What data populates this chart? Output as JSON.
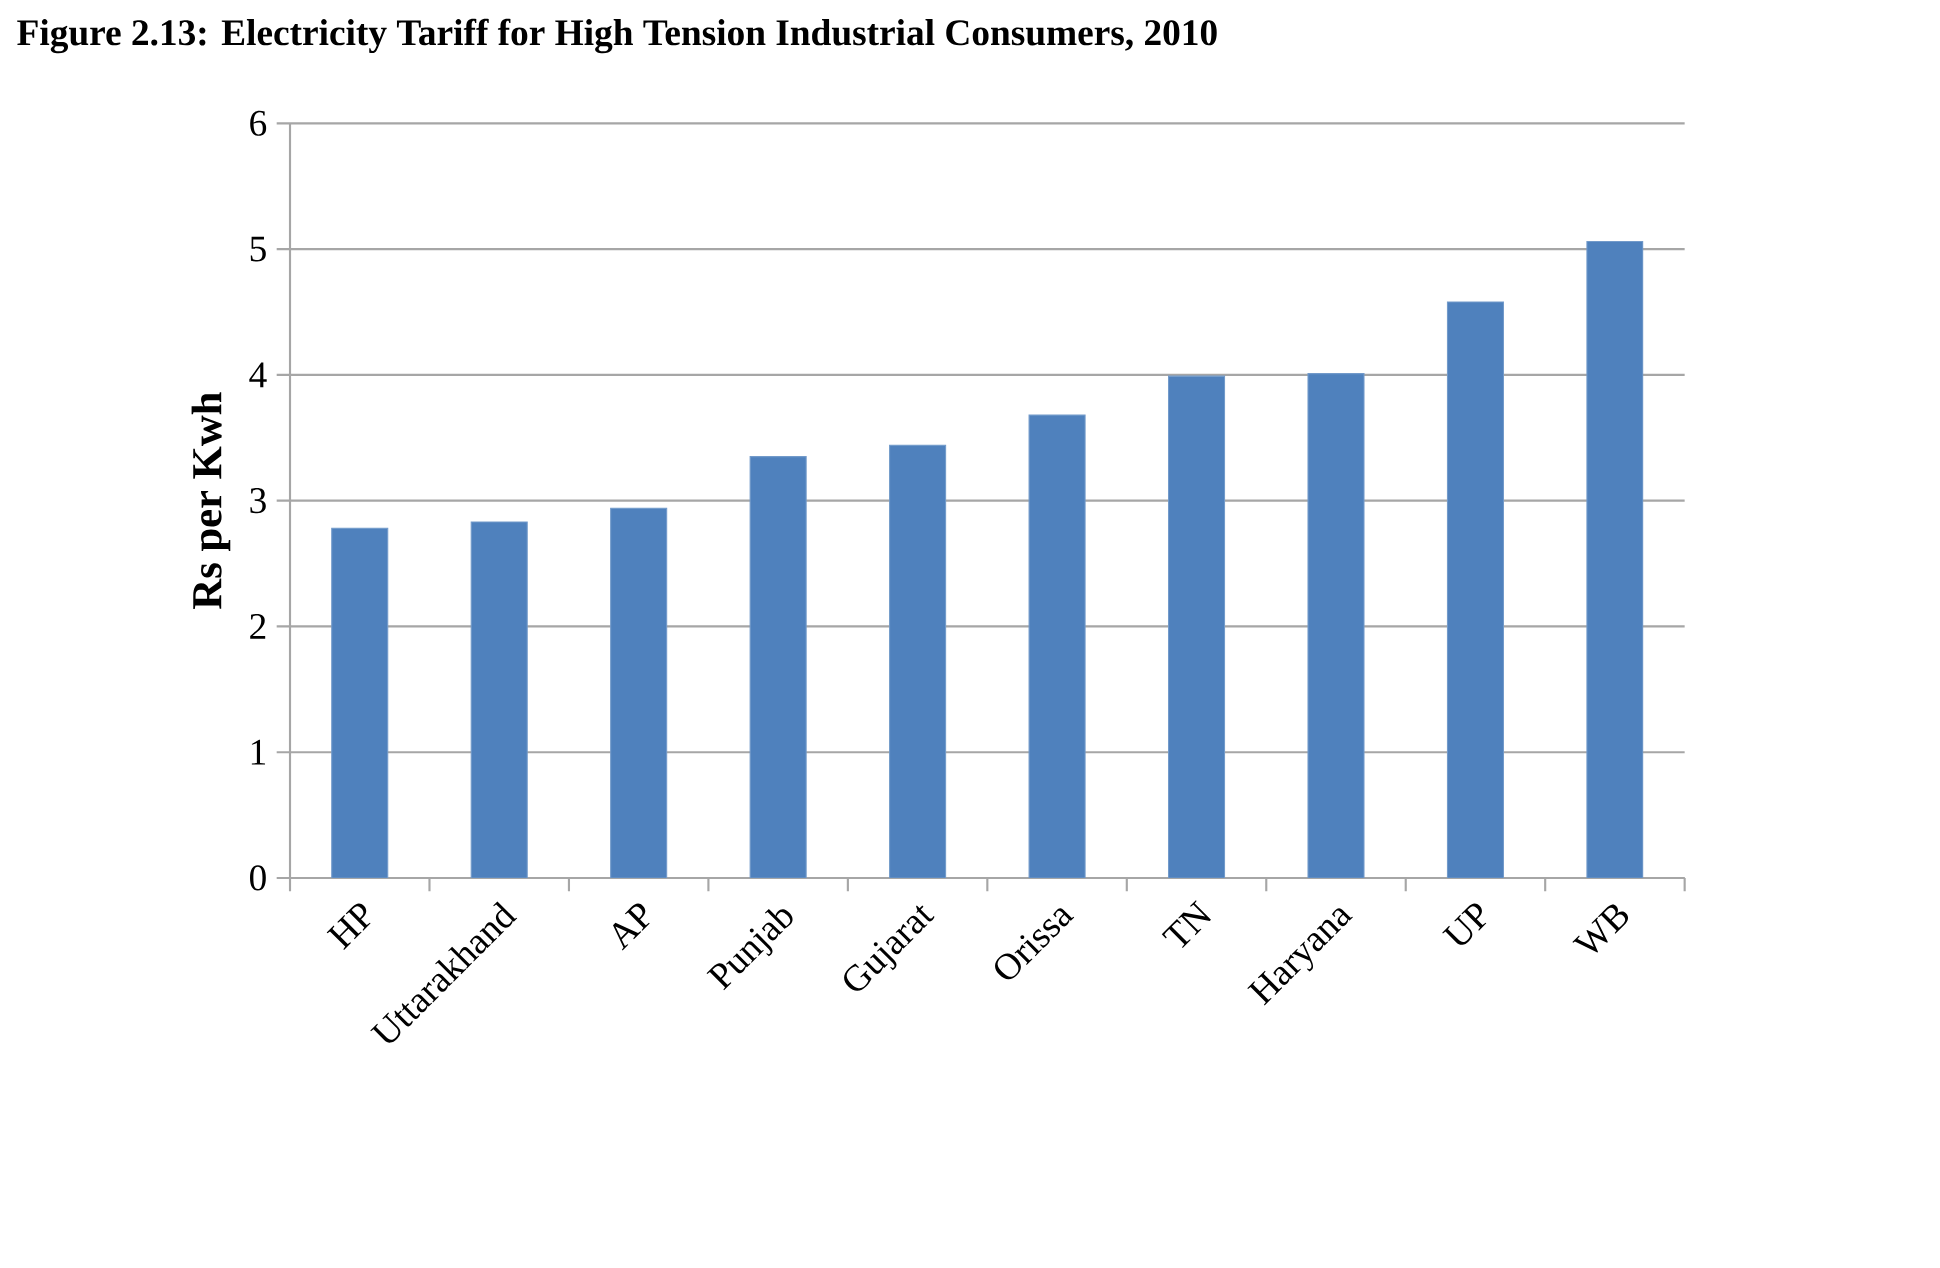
{
  "chart_data": {
    "type": "bar",
    "title": "Figure 2.13: Electricity Tariff for High Tension Industrial Consumers, 2010",
    "ylabel": "Rs per Kwh",
    "categories": [
      "HP",
      "Uttarakhand",
      "AP",
      "Punjab",
      "Gujarat",
      "Orissa",
      "TN",
      "Haryana",
      "UP",
      "WB"
    ],
    "values": [
      2.78,
      2.83,
      2.94,
      3.35,
      3.44,
      3.68,
      3.99,
      4.01,
      4.58,
      5.06
    ],
    "color": "#4f81bd",
    "ylim": [
      0,
      6
    ],
    "yticks": [
      0,
      1,
      2,
      3,
      4,
      5,
      6
    ],
    "grid": "y"
  }
}
